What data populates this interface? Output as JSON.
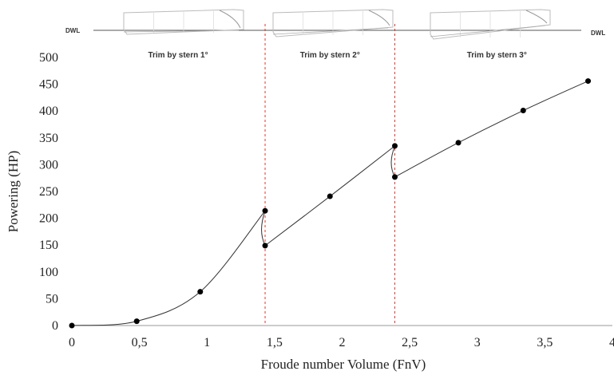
{
  "chart_data": {
    "type": "line",
    "xlabel": "Froude number Volume (FnV)",
    "ylabel": "Powering (HP)",
    "xlim": [
      0,
      4
    ],
    "ylim": [
      0,
      500
    ],
    "x_ticks": [
      "0",
      "0,5",
      "1",
      "1,5",
      "2",
      "2,5",
      "3",
      "3,5",
      "4"
    ],
    "y_ticks": [
      "0",
      "50",
      "100",
      "150",
      "200",
      "250",
      "300",
      "350",
      "400",
      "450",
      "500"
    ],
    "series": [
      {
        "points": [
          {
            "x": 0.0,
            "y": 0
          },
          {
            "x": 0.48,
            "y": 8
          },
          {
            "x": 0.95,
            "y": 63
          },
          {
            "x": 1.43,
            "y": 214
          },
          {
            "x": 1.43,
            "y": 149
          },
          {
            "x": 1.91,
            "y": 241
          },
          {
            "x": 2.39,
            "y": 335
          },
          {
            "x": 2.39,
            "y": 277
          },
          {
            "x": 2.86,
            "y": 341
          },
          {
            "x": 3.34,
            "y": 401
          },
          {
            "x": 3.82,
            "y": 456
          }
        ]
      }
    ],
    "regions": [
      {
        "label": "Trim by stern 1°"
      },
      {
        "label": "Trim by stern 2°"
      },
      {
        "label": "Trim by stern 3°"
      }
    ],
    "dividers_x": [
      1.43,
      2.39
    ],
    "waterline_label": "DWL",
    "grid": false,
    "colors": {
      "line": "#333333",
      "marker": "#000000",
      "divider": "#e0392b",
      "axis": "#999999"
    }
  }
}
